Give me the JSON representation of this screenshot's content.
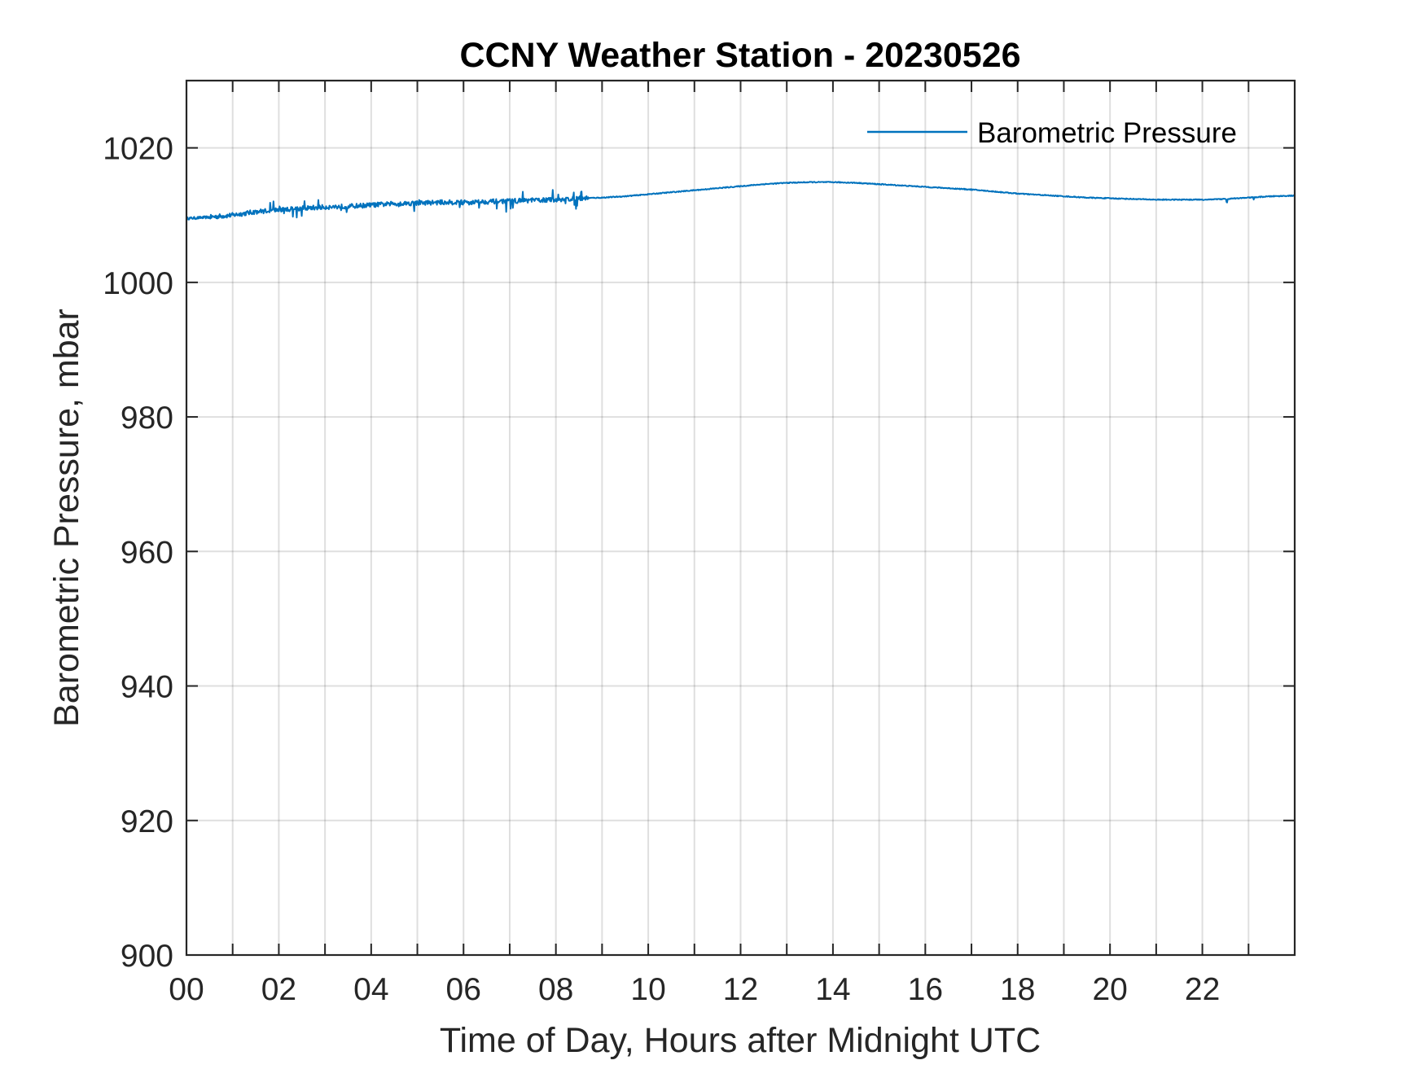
{
  "chart_data": {
    "type": "line",
    "title": "CCNY Weather Station - 20230526",
    "xlabel": "Time of Day, Hours after Midnight UTC",
    "ylabel": "Barometric Pressure, mbar",
    "xlim": [
      0,
      24
    ],
    "ylim": [
      900,
      1030
    ],
    "grid": true,
    "legend_position": "top-right",
    "x_ticks": [
      0,
      2,
      4,
      6,
      8,
      10,
      12,
      14,
      16,
      18,
      20,
      22
    ],
    "x_tick_labels": [
      "00",
      "02",
      "04",
      "06",
      "08",
      "10",
      "12",
      "14",
      "16",
      "18",
      "20",
      "22"
    ],
    "y_ticks": [
      900,
      920,
      940,
      960,
      980,
      1000,
      1020
    ],
    "y_tick_labels": [
      "900",
      "920",
      "940",
      "960",
      "980",
      "1000",
      "1020"
    ],
    "series": [
      {
        "name": "Barometric Pressure",
        "color": "#0072BD",
        "x": [
          0.0,
          0.5,
          1.0,
          1.5,
          2.0,
          2.5,
          3.0,
          3.5,
          4.0,
          4.5,
          5.0,
          5.5,
          6.0,
          6.5,
          7.0,
          7.5,
          8.0,
          8.5,
          9.0,
          9.5,
          10.0,
          10.5,
          11.0,
          11.5,
          12.0,
          12.5,
          13.0,
          13.5,
          14.0,
          14.5,
          15.0,
          15.5,
          16.0,
          16.5,
          17.0,
          17.5,
          18.0,
          18.5,
          19.0,
          19.5,
          20.0,
          20.5,
          21.0,
          21.5,
          22.0,
          22.5,
          23.0,
          23.5,
          24.0
        ],
        "values": [
          1009.5,
          1009.7,
          1010.0,
          1010.5,
          1010.8,
          1011.0,
          1011.2,
          1011.3,
          1011.5,
          1011.7,
          1011.8,
          1011.9,
          1011.9,
          1012.0,
          1012.1,
          1012.2,
          1012.3,
          1012.5,
          1012.6,
          1012.8,
          1013.1,
          1013.4,
          1013.7,
          1014.0,
          1014.3,
          1014.6,
          1014.8,
          1014.9,
          1014.9,
          1014.8,
          1014.6,
          1014.4,
          1014.2,
          1014.0,
          1013.8,
          1013.5,
          1013.2,
          1013.0,
          1012.8,
          1012.6,
          1012.5,
          1012.4,
          1012.3,
          1012.3,
          1012.3,
          1012.4,
          1012.6,
          1012.8,
          1012.9
        ]
      }
    ]
  }
}
